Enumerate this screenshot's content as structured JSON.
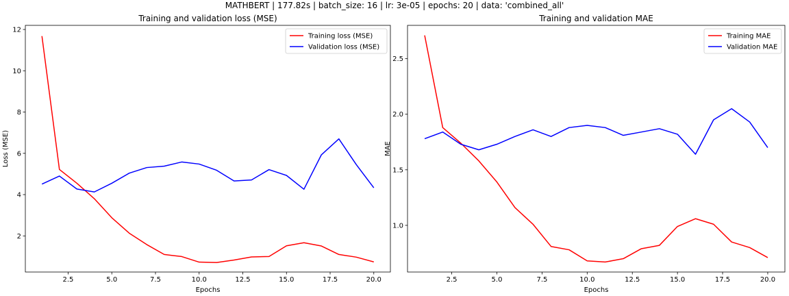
{
  "suptitle": "MATHBERT | 177.82s | batch_size: 16 | lr: 3e-05 | epochs: 20 | data: 'combined_all'",
  "chart_data": [
    {
      "type": "line",
      "title": "Training and validation loss (MSE)",
      "xlabel": "Epochs",
      "ylabel": "Loss (MSE)",
      "xlim": [
        0.05,
        20.95
      ],
      "ylim": [
        0.25,
        12.2
      ],
      "xticks": [
        2.5,
        5.0,
        7.5,
        10.0,
        12.5,
        15.0,
        17.5,
        20.0
      ],
      "xtick_labels": [
        "2.5",
        "5.0",
        "7.5",
        "10.0",
        "12.5",
        "15.0",
        "17.5",
        "20.0"
      ],
      "yticks": [
        2,
        4,
        6,
        8,
        10,
        12
      ],
      "ytick_labels": [
        "2",
        "4",
        "6",
        "8",
        "10",
        "12"
      ],
      "grid": false,
      "legend_position": "upper right",
      "x": [
        1,
        2,
        3,
        4,
        5,
        6,
        7,
        8,
        9,
        10,
        11,
        12,
        13,
        14,
        15,
        16,
        17,
        18,
        19,
        20
      ],
      "series": [
        {
          "name": "Training loss (MSE)",
          "color": "#ff0000",
          "values": [
            11.68,
            5.22,
            4.55,
            3.8,
            2.88,
            2.13,
            1.58,
            1.1,
            1.0,
            0.73,
            0.71,
            0.83,
            0.98,
            1.0,
            1.52,
            1.67,
            1.51,
            1.1,
            0.97,
            0.74
          ]
        },
        {
          "name": "Validation loss (MSE)",
          "color": "#0000ff",
          "values": [
            4.51,
            4.9,
            4.27,
            4.13,
            4.55,
            5.04,
            5.31,
            5.38,
            5.58,
            5.48,
            5.18,
            4.66,
            4.71,
            5.21,
            4.93,
            4.26,
            5.93,
            6.7,
            5.45,
            4.33
          ]
        }
      ]
    },
    {
      "type": "line",
      "title": "Training and validation MAE",
      "xlabel": "Epochs",
      "ylabel": "MAE",
      "xlim": [
        0.05,
        20.95
      ],
      "ylim": [
        0.58,
        2.8
      ],
      "xticks": [
        2.5,
        5.0,
        7.5,
        10.0,
        12.5,
        15.0,
        17.5,
        20.0
      ],
      "xtick_labels": [
        "2.5",
        "5.0",
        "7.5",
        "10.0",
        "12.5",
        "15.0",
        "17.5",
        "20.0"
      ],
      "yticks": [
        1.0,
        1.5,
        2.0,
        2.5
      ],
      "ytick_labels": [
        "1.0",
        "1.5",
        "2.0",
        "2.5"
      ],
      "grid": false,
      "legend_position": "upper right",
      "x": [
        1,
        2,
        3,
        4,
        5,
        6,
        7,
        8,
        9,
        10,
        11,
        12,
        13,
        14,
        15,
        16,
        17,
        18,
        19,
        20
      ],
      "series": [
        {
          "name": "Training MAE",
          "color": "#ff0000",
          "values": [
            2.71,
            1.88,
            1.74,
            1.58,
            1.39,
            1.16,
            1.01,
            0.81,
            0.78,
            0.68,
            0.67,
            0.7,
            0.79,
            0.82,
            0.99,
            1.06,
            1.01,
            0.85,
            0.8,
            0.71
          ]
        },
        {
          "name": "Validation MAE",
          "color": "#0000ff",
          "values": [
            1.78,
            1.84,
            1.73,
            1.68,
            1.73,
            1.8,
            1.86,
            1.8,
            1.88,
            1.9,
            1.88,
            1.81,
            1.84,
            1.87,
            1.82,
            1.64,
            1.95,
            2.05,
            1.93,
            1.7
          ]
        }
      ]
    }
  ]
}
